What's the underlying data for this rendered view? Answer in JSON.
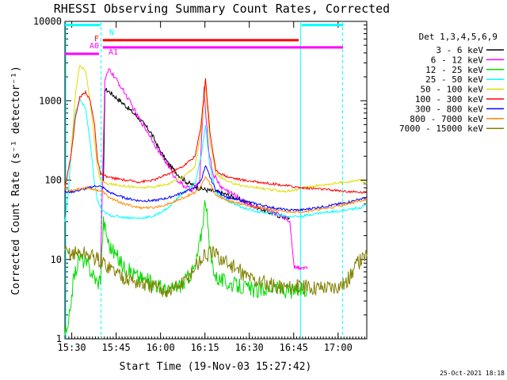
{
  "chart_data": {
    "type": "line",
    "title": "RHESSI Observing Summary Count Rates, Corrected",
    "xlabel": "Start Time (19-Nov-03 15:27:42)",
    "ylabel": "Corrected Count Rate (s⁻¹ detector⁻¹)",
    "yscale": "log",
    "ylim": [
      1,
      10000
    ],
    "xlim_minutes": [
      0,
      102
    ],
    "x_unit": "minutes after 15:27:42",
    "x_ticks": [
      {
        "t": 2.3,
        "label": "15:30"
      },
      {
        "t": 17.3,
        "label": "15:45"
      },
      {
        "t": 32.3,
        "label": "16:00"
      },
      {
        "t": 47.3,
        "label": "16:15"
      },
      {
        "t": 62.3,
        "label": "16:30"
      },
      {
        "t": 77.3,
        "label": "16:45"
      },
      {
        "t": 92.3,
        "label": "17:00"
      }
    ],
    "y_ticks": [
      {
        "v": 1,
        "label": "1"
      },
      {
        "v": 10,
        "label": "10"
      },
      {
        "v": 100,
        "label": "100"
      },
      {
        "v": 1000,
        "label": "1000"
      },
      {
        "v": 10000,
        "label": "10000"
      }
    ],
    "legend_title": "Det 1,3,4,5,6,9",
    "legend_position": "right",
    "series": [
      {
        "name": "3 - 6 keV",
        "color": "#000000",
        "x": [
          13,
          13.5,
          15,
          20,
          25,
          29,
          32,
          35,
          38,
          41,
          45,
          48,
          52,
          55,
          60,
          65,
          70,
          74,
          76
        ],
        "y": [
          90,
          1400,
          1300,
          900,
          600,
          400,
          240,
          160,
          120,
          95,
          80,
          75,
          70,
          65,
          55,
          45,
          38,
          34,
          33
        ]
      },
      {
        "name": "6 - 12 keV",
        "color": "#ff00ff",
        "x": [
          12,
          13.5,
          15,
          20,
          25,
          29,
          32,
          35,
          37,
          40,
          43,
          45.5,
          47,
          48.5,
          50,
          53,
          56,
          60,
          65,
          70,
          74,
          76,
          77.5,
          82
        ],
        "y": [
          8,
          1800,
          2500,
          1300,
          600,
          350,
          220,
          150,
          110,
          85,
          75,
          95,
          1400,
          250,
          120,
          80,
          70,
          55,
          45,
          40,
          35,
          30,
          8,
          8
        ]
      },
      {
        "name": "12 - 25 keV",
        "color": "#00dd00",
        "x": [
          0,
          1,
          2,
          3,
          5,
          7,
          9,
          10,
          11,
          12,
          13,
          15,
          20,
          25,
          30,
          35,
          40,
          44,
          46,
          47.5,
          49,
          51,
          55,
          60,
          65,
          70,
          75,
          80,
          82
        ],
        "y": [
          1.2,
          1.2,
          3,
          6,
          11,
          9,
          7,
          6,
          5,
          6,
          30,
          15,
          8,
          6,
          5,
          4,
          5,
          8,
          20,
          60,
          12,
          6,
          5,
          4.5,
          4,
          4.5,
          4,
          4,
          4
        ]
      },
      {
        "name": "25 - 50 keV",
        "color": "#00ffff",
        "x": [
          0,
          1,
          2,
          3.5,
          5,
          7,
          8.5,
          10,
          11,
          12,
          13,
          15,
          20,
          25,
          30,
          35,
          40,
          44,
          46,
          47.5,
          49,
          51,
          55,
          60,
          65,
          70,
          75,
          80,
          85,
          90,
          95,
          100,
          102
        ],
        "y": [
          30,
          60,
          200,
          700,
          1050,
          800,
          300,
          90,
          55,
          45,
          40,
          36,
          34,
          33,
          35,
          45,
          70,
          90,
          200,
          480,
          150,
          70,
          55,
          45,
          40,
          38,
          35,
          35,
          38,
          40,
          42,
          45,
          50
        ]
      },
      {
        "name": "50 - 100 keV",
        "color": "#dddd00",
        "x": [
          0,
          2,
          3.5,
          5,
          7,
          8.5,
          10,
          11,
          12,
          14,
          20,
          25,
          30,
          35,
          40,
          44,
          46,
          47.5,
          49,
          51,
          55,
          60,
          65,
          70,
          75,
          78,
          80,
          85,
          90,
          95,
          100,
          102
        ],
        "y": [
          80,
          200,
          1200,
          2800,
          2400,
          1000,
          300,
          140,
          100,
          90,
          85,
          80,
          82,
          90,
          110,
          150,
          400,
          1600,
          300,
          120,
          95,
          85,
          80,
          75,
          72,
          75,
          80,
          85,
          90,
          95,
          100,
          90
        ]
      },
      {
        "name": "100 - 300 keV",
        "color": "#ff0000",
        "x": [
          0,
          2,
          3.5,
          5,
          7,
          8.5,
          10,
          11,
          12,
          14,
          20,
          25,
          30,
          35,
          40,
          44,
          46,
          47.5,
          49,
          51,
          55,
          60,
          65,
          70,
          75,
          80,
          85,
          90,
          95,
          100,
          102
        ],
        "y": [
          80,
          200,
          600,
          1100,
          1300,
          1000,
          500,
          180,
          120,
          110,
          100,
          95,
          100,
          120,
          150,
          200,
          500,
          1900,
          400,
          130,
          110,
          100,
          95,
          90,
          85,
          80,
          78,
          75,
          72,
          70,
          70
        ]
      },
      {
        "name": "300 - 800 keV",
        "color": "#0000ff",
        "x": [
          0,
          3,
          5,
          7,
          9,
          11,
          13,
          15,
          20,
          25,
          30,
          35,
          40,
          44,
          46,
          47.5,
          49,
          51,
          55,
          60,
          65,
          70,
          75,
          80,
          85,
          90,
          95,
          100,
          102
        ],
        "y": [
          70,
          72,
          75,
          78,
          82,
          85,
          80,
          70,
          60,
          55,
          55,
          60,
          70,
          80,
          100,
          150,
          110,
          75,
          60,
          55,
          50,
          45,
          42,
          42,
          45,
          48,
          52,
          58,
          60
        ]
      },
      {
        "name": "800 - 7000 keV",
        "color": "#ff8800",
        "x": [
          0,
          3,
          5,
          7,
          9,
          11,
          13,
          15,
          20,
          25,
          30,
          35,
          40,
          44,
          46,
          47.5,
          49,
          51,
          55,
          60,
          65,
          70,
          75,
          80,
          85,
          90,
          95,
          100,
          102
        ],
        "y": [
          75,
          75,
          78,
          80,
          78,
          75,
          70,
          60,
          50,
          45,
          45,
          50,
          60,
          70,
          85,
          110,
          90,
          65,
          55,
          50,
          45,
          42,
          40,
          40,
          42,
          45,
          50,
          55,
          58
        ]
      },
      {
        "name": "7000 - 15000 keV",
        "color": "#808000",
        "x": [
          0,
          3,
          6,
          9,
          11,
          13,
          15,
          20,
          25,
          30,
          35,
          40,
          44,
          47,
          50,
          53,
          57,
          62,
          67,
          72,
          76,
          80,
          85,
          90,
          95,
          98,
          100,
          102
        ],
        "y": [
          12,
          12,
          12,
          11,
          10,
          9,
          8,
          6,
          5,
          4.5,
          4,
          5,
          8,
          11,
          12,
          10,
          8,
          6,
          5,
          4.5,
          4.5,
          4.5,
          4.5,
          4.5,
          5,
          8,
          10,
          11
        ]
      }
    ],
    "annotations": {
      "N": "N",
      "F": "F",
      "A0": "A0",
      "A1": "A1",
      "date_stamp": "25-Oct-2021 18:18"
    },
    "flag_bars": [
      {
        "label": "N",
        "color": "#00ffff",
        "level": 9000,
        "segments": [
          [
            0,
            12
          ],
          [
            80,
            94
          ]
        ]
      },
      {
        "label": "F",
        "color": "#ff0000",
        "level": 5800,
        "segments": [
          [
            12.8,
            79
          ]
        ]
      },
      {
        "label": "A0",
        "color": "#ff00ff",
        "level": 3900,
        "segments": [
          [
            0,
            11.5
          ]
        ]
      },
      {
        "label": "A1",
        "color": "#ff00ff",
        "level": 4700,
        "segments": [
          [
            12.8,
            94
          ]
        ]
      }
    ],
    "vertical_markers": [
      {
        "t": 0,
        "color": "#00ffff",
        "style": "solid"
      },
      {
        "t": 12.2,
        "color": "#00ffff",
        "style": "dashed"
      },
      {
        "t": 79.6,
        "color": "#00ffff",
        "style": "solid"
      },
      {
        "t": 93.8,
        "color": "#00ffff",
        "style": "dashed"
      }
    ]
  }
}
